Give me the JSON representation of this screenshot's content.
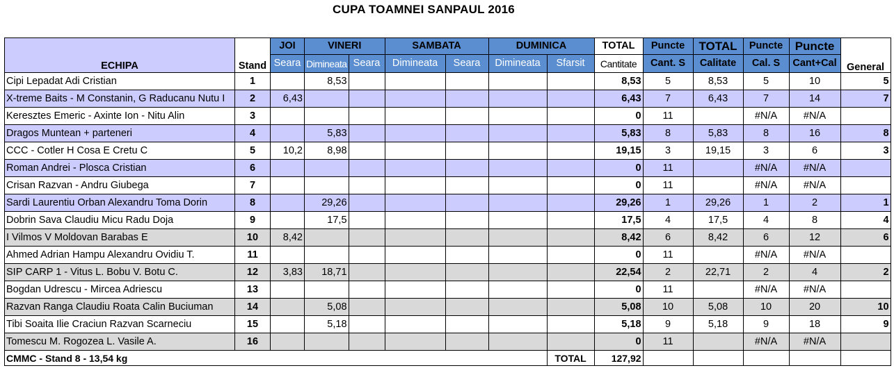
{
  "title": "CUPA TOAMNEI SANPAUL  2016",
  "header": {
    "echipa": "ECHIPA",
    "stand": "Stand",
    "days": [
      "JOI",
      "VINERI",
      "SAMBATA",
      "DUMINICA"
    ],
    "sessions": [
      "Seara",
      "Dimineata",
      "Seara",
      "Dimineata",
      "Seara",
      "Dimineata",
      "Sfarsit"
    ],
    "total_label": "TOTAL",
    "cantitate": "Cantitate",
    "puncte1": "Puncte",
    "cant_s": "Cant. S",
    "total2": "TOTAL",
    "calitate": "Calitate",
    "puncte2": "Puncte",
    "cal_s": "Cal. S",
    "puncte3": "Puncte",
    "cant_cal": "Cant+Cal",
    "general": "General"
  },
  "rows": [
    {
      "team": "Cipi Lepadat Adi Cristian",
      "small": false,
      "stand": "1",
      "joi_seara": "",
      "vin_dim": "8,53",
      "vin_seara": "",
      "sam_dim": "",
      "sam_seara": "",
      "dum_dim": "",
      "dum_sf": "",
      "cantitate": "8,53",
      "cant_s": "5",
      "calitate": "8,53",
      "cal_s": "5",
      "cant_cal": "10",
      "general": "5",
      "bg": "white"
    },
    {
      "team": "X-treme Baits - M Constanin, G Raducanu Nutu I",
      "small": false,
      "stand": "2",
      "joi_seara": "6,43",
      "vin_dim": "",
      "vin_seara": "",
      "sam_dim": "",
      "sam_seara": "",
      "dum_dim": "",
      "dum_sf": "",
      "cantitate": "6,43",
      "cant_s": "7",
      "calitate": "6,43",
      "cal_s": "7",
      "cant_cal": "14",
      "general": "7",
      "bg": "lav"
    },
    {
      "team": "Keresztes Emeric - Axinte Ion - Nitu Alin",
      "small": false,
      "stand": "3",
      "joi_seara": "",
      "vin_dim": "",
      "vin_seara": "",
      "sam_dim": "",
      "sam_seara": "",
      "dum_dim": "",
      "dum_sf": "",
      "cantitate": "0",
      "cant_s": "11",
      "calitate": "",
      "cal_s": "#N/A",
      "cant_cal": "#N/A",
      "general": "",
      "bg": "white"
    },
    {
      "team": "Dragos Muntean + parteneri",
      "small": false,
      "stand": "4",
      "joi_seara": "",
      "vin_dim": "5,83",
      "vin_seara": "",
      "sam_dim": "",
      "sam_seara": "",
      "dum_dim": "",
      "dum_sf": "",
      "cantitate": "5,83",
      "cant_s": "8",
      "calitate": "5,83",
      "cal_s": "8",
      "cant_cal": "16",
      "general": "8",
      "bg": "lav"
    },
    {
      "team": "CCC - Cotler H Cosa E Cretu C",
      "small": false,
      "stand": "5",
      "joi_seara": "10,2",
      "vin_dim": "8,98",
      "vin_seara": "",
      "sam_dim": "",
      "sam_seara": "",
      "dum_dim": "",
      "dum_sf": "",
      "cantitate": "19,15",
      "cant_s": "3",
      "calitate": "19,15",
      "cal_s": "3",
      "cant_cal": "6",
      "general": "3",
      "bg": "white"
    },
    {
      "team": "Roman Andrei - Plosca Cristian",
      "small": true,
      "stand": "6",
      "joi_seara": "",
      "vin_dim": "",
      "vin_seara": "",
      "sam_dim": "",
      "sam_seara": "",
      "dum_dim": "",
      "dum_sf": "",
      "cantitate": "0",
      "cant_s": "11",
      "calitate": "",
      "cal_s": "#N/A",
      "cant_cal": "#N/A",
      "general": "",
      "bg": "lav"
    },
    {
      "team": "Crisan Razvan - Andru Giubega",
      "small": false,
      "stand": "7",
      "joi_seara": "",
      "vin_dim": "",
      "vin_seara": "",
      "sam_dim": "",
      "sam_seara": "",
      "dum_dim": "",
      "dum_sf": "",
      "cantitate": "0",
      "cant_s": "11",
      "calitate": "",
      "cal_s": "#N/A",
      "cant_cal": "#N/A",
      "general": "",
      "bg": "white"
    },
    {
      "team": "Sardi Laurentiu  Orban Alexandru  Toma Dorin",
      "small": true,
      "stand": "8",
      "joi_seara": "",
      "vin_dim": "29,26",
      "vin_seara": "",
      "sam_dim": "",
      "sam_seara": "",
      "dum_dim": "",
      "dum_sf": "",
      "cantitate": "29,26",
      "cant_s": "1",
      "calitate": "29,26",
      "cal_s": "1",
      "cant_cal": "2",
      "general": "1",
      "bg": "lav"
    },
    {
      "team": "Dobrin Sava Claudiu Micu Radu Doja",
      "small": false,
      "stand": "9",
      "joi_seara": "",
      "vin_dim": "17,5",
      "vin_seara": "",
      "sam_dim": "",
      "sam_seara": "",
      "dum_dim": "",
      "dum_sf": "",
      "cantitate": "17,5",
      "cant_s": "4",
      "calitate": "17,5",
      "cal_s": "4",
      "cant_cal": "8",
      "general": "4",
      "bg": "white"
    },
    {
      "team": "I Vilmos V Moldovan Barabas E",
      "small": false,
      "stand": "10",
      "joi_seara": "8,42",
      "vin_dim": "",
      "vin_seara": "",
      "sam_dim": "",
      "sam_seara": "",
      "dum_dim": "",
      "dum_sf": "",
      "cantitate": "8,42",
      "cant_s": "6",
      "calitate": "8,42",
      "cal_s": "6",
      "cant_cal": "12",
      "general": "6",
      "bg": "gray"
    },
    {
      "team": "Ahmed Adrian Hampu Alexandru Ovidiu T.",
      "small": false,
      "stand": "11",
      "joi_seara": "",
      "vin_dim": "",
      "vin_seara": "",
      "sam_dim": "",
      "sam_seara": "",
      "dum_dim": "",
      "dum_sf": "",
      "cantitate": "0",
      "cant_s": "11",
      "calitate": "",
      "cal_s": "#N/A",
      "cant_cal": "#N/A",
      "general": "",
      "bg": "white"
    },
    {
      "team": "SIP CARP 1 - Vitus L. Bobu V. Botu C.",
      "small": false,
      "stand": "12",
      "joi_seara": "3,83",
      "vin_dim": "18,71",
      "vin_seara": "",
      "sam_dim": "",
      "sam_seara": "",
      "dum_dim": "",
      "dum_sf": "",
      "cantitate": "22,54",
      "cant_s": "2",
      "calitate": "22,71",
      "cal_s": "2",
      "cant_cal": "4",
      "general": "2",
      "bg": "gray"
    },
    {
      "team": "Bogdan Udrescu - Mircea Adriescu",
      "small": false,
      "stand": "13",
      "joi_seara": "",
      "vin_dim": "",
      "vin_seara": "",
      "sam_dim": "",
      "sam_seara": "",
      "dum_dim": "",
      "dum_sf": "",
      "cantitate": "0",
      "cant_s": "11",
      "calitate": "",
      "cal_s": "#N/A",
      "cant_cal": "#N/A",
      "general": "",
      "bg": "white"
    },
    {
      "team": "Razvan Ranga Claudiu Roata Calin Buciuman",
      "small": false,
      "stand": "14",
      "joi_seara": "",
      "vin_dim": "5,08",
      "vin_seara": "",
      "sam_dim": "",
      "sam_seara": "",
      "dum_dim": "",
      "dum_sf": "",
      "cantitate": "5,08",
      "cant_s": "10",
      "calitate": "5,08",
      "cal_s": "10",
      "cant_cal": "20",
      "general": "10",
      "bg": "gray"
    },
    {
      "team": "Tibi Soaita Ilie Craciun Razvan Scarneciu",
      "small": false,
      "stand": "15",
      "joi_seara": "",
      "vin_dim": "5,18",
      "vin_seara": "",
      "sam_dim": "",
      "sam_seara": "",
      "dum_dim": "",
      "dum_sf": "",
      "cantitate": "5,18",
      "cant_s": "9",
      "calitate": "5,18",
      "cal_s": "9",
      "cant_cal": "18",
      "general": "9",
      "bg": "white"
    },
    {
      "team": "Tomescu M.  Rogozea L. Vasile A.",
      "small": false,
      "stand": "16",
      "joi_seara": "",
      "vin_dim": "",
      "vin_seara": "",
      "sam_dim": "",
      "sam_seara": "",
      "dum_dim": "",
      "dum_sf": "",
      "cantitate": "0",
      "cant_s": "11",
      "calitate": "",
      "cal_s": "#N/A",
      "cant_cal": "#N/A",
      "general": "",
      "bg": "gray"
    }
  ],
  "footer": {
    "note": "CMMC - Stand 8 - 13,54 kg",
    "total_label": "TOTAL",
    "total_value": "127,92"
  },
  "colors": {
    "header_blue": "#5b8ed0",
    "row_lavender": "#ccccff",
    "row_gray": "#d9d9d9"
  }
}
